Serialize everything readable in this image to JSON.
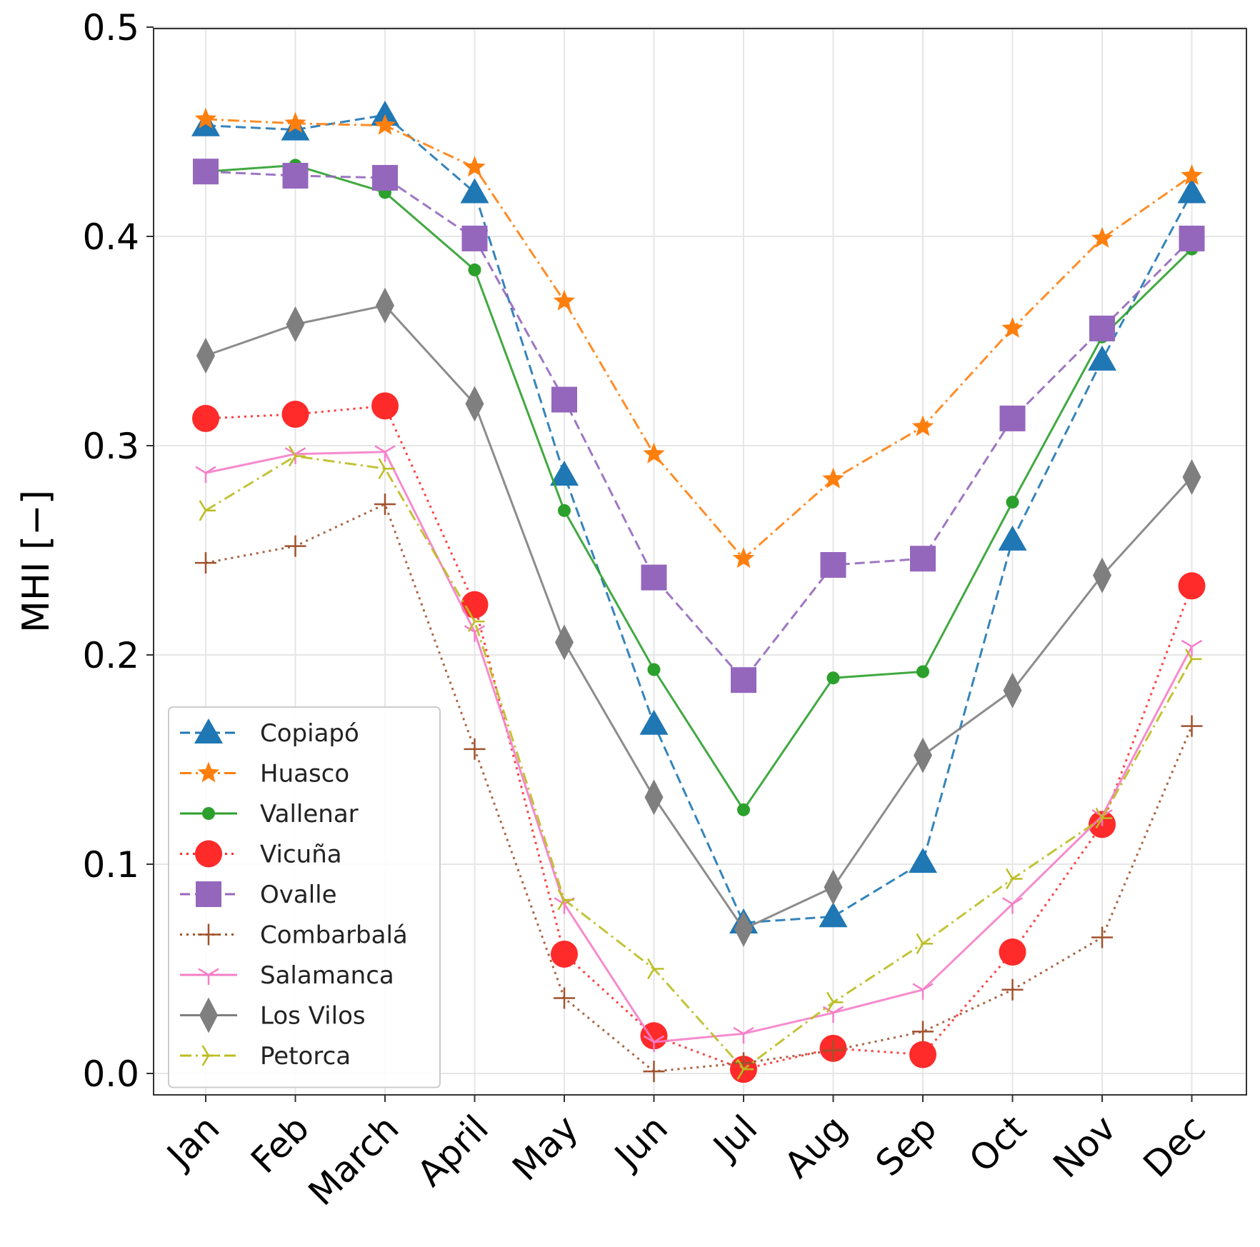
{
  "chart_data": {
    "type": "line",
    "title": "",
    "xlabel": "",
    "ylabel": "MHI [−]",
    "ylim": [
      0.0,
      0.5
    ],
    "yticks": [
      "0.0",
      "0.1",
      "0.2",
      "0.3",
      "0.4",
      "0.5"
    ],
    "grid": true,
    "legend_position": "bottom-left",
    "categories": [
      "Jan",
      "Feb",
      "March",
      "April",
      "May",
      "Jun",
      "Jul",
      "Aug",
      "Sep",
      "Oct",
      "Nov",
      "Dec"
    ],
    "series": [
      {
        "name": "Copiapó",
        "color": "#1f77b4",
        "marker": "triangle",
        "linestyle": "dashed",
        "values": [
          0.453,
          0.451,
          0.458,
          0.421,
          0.286,
          0.167,
          0.072,
          0.075,
          0.101,
          0.255,
          0.341,
          0.421
        ]
      },
      {
        "name": "Huasco",
        "color": "#ff7f0e",
        "marker": "star",
        "linestyle": "dashdot",
        "values": [
          0.456,
          0.454,
          0.453,
          0.433,
          0.369,
          0.296,
          0.246,
          0.284,
          0.309,
          0.356,
          0.399,
          0.429
        ]
      },
      {
        "name": "Vallenar",
        "color": "#2ca02c",
        "marker": "circle-small",
        "linestyle": "solid",
        "values": [
          0.431,
          0.434,
          0.421,
          0.384,
          0.269,
          0.193,
          0.126,
          0.189,
          0.192,
          0.273,
          0.352,
          0.394
        ]
      },
      {
        "name": "Vicuña",
        "color": "#ff2a2a",
        "marker": "circle-large",
        "linestyle": "dotted",
        "values": [
          0.313,
          0.315,
          0.319,
          0.224,
          0.057,
          0.018,
          0.002,
          0.012,
          0.009,
          0.058,
          0.119,
          0.233
        ]
      },
      {
        "name": "Ovalle",
        "color": "#9467bd",
        "marker": "square",
        "linestyle": "dashed",
        "values": [
          0.431,
          0.429,
          0.428,
          0.399,
          0.322,
          0.237,
          0.188,
          0.243,
          0.246,
          0.313,
          0.356,
          0.399
        ]
      },
      {
        "name": "Combarbalá",
        "color": "#a0522d",
        "marker": "plus",
        "linestyle": "dotted",
        "values": [
          0.244,
          0.252,
          0.272,
          0.155,
          0.036,
          0.001,
          0.005,
          0.011,
          0.02,
          0.04,
          0.065,
          0.166
        ]
      },
      {
        "name": "Salamanca",
        "color": "#f57ec8",
        "marker": "tri",
        "linestyle": "solid",
        "values": [
          0.287,
          0.296,
          0.297,
          0.211,
          0.081,
          0.015,
          0.019,
          0.029,
          0.04,
          0.081,
          0.123,
          0.204
        ]
      },
      {
        "name": "Los Vilos",
        "color": "#7f7f7f",
        "marker": "diamond",
        "linestyle": "solid",
        "values": [
          0.343,
          0.358,
          0.367,
          0.32,
          0.206,
          0.132,
          0.069,
          0.089,
          0.152,
          0.183,
          0.238,
          0.285
        ]
      },
      {
        "name": "Petorca",
        "color": "#bcbd22",
        "marker": "tri-right",
        "linestyle": "dashdot",
        "values": [
          0.269,
          0.295,
          0.289,
          0.216,
          0.083,
          0.05,
          0.002,
          0.034,
          0.062,
          0.093,
          0.122,
          0.198
        ]
      }
    ]
  }
}
